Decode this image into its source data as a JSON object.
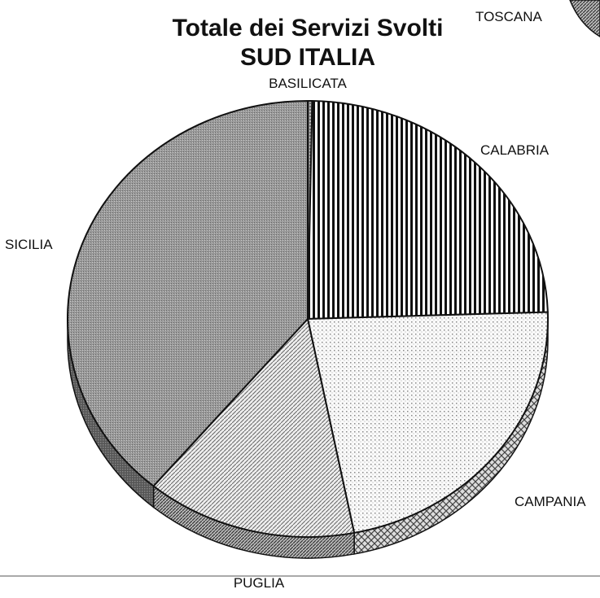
{
  "chart_data": {
    "type": "pie",
    "title": "Totale dei Servizi Svolti",
    "subtitle": "SUD ITALIA",
    "categories": [
      "BASILICATA",
      "CALABRIA",
      "CAMPANIA",
      "PUGLIA",
      "SICILIA"
    ],
    "values": [
      0.3,
      24.2,
      22.4,
      14.2,
      38.9
    ],
    "annotations": [
      "TOSCANA"
    ]
  }
}
